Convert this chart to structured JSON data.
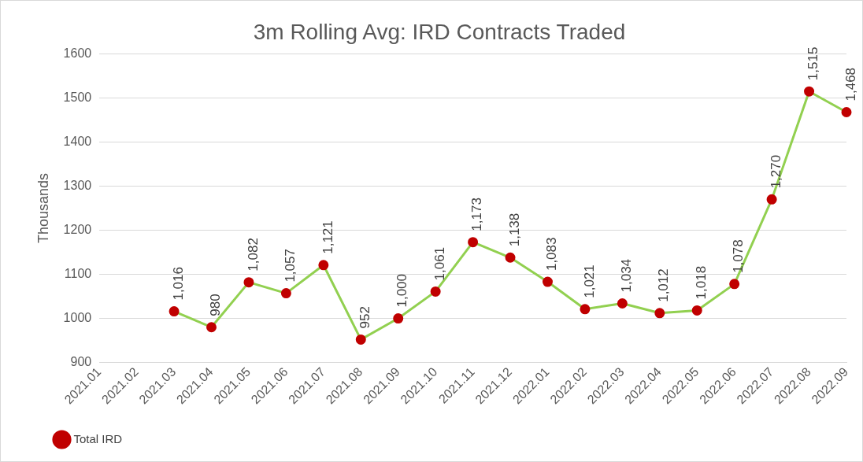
{
  "chart_data": {
    "type": "line",
    "title": "3m Rolling Avg: IRD Contracts Traded",
    "ylabel": "Thousands",
    "categories": [
      "2021.01",
      "2021.02",
      "2021.03",
      "2021.04",
      "2021.05",
      "2021.06",
      "2021.07",
      "2021.08",
      "2021.09",
      "2021.10",
      "2021.11",
      "2021.12",
      "2022.01",
      "2022.02",
      "2022.03",
      "2022.04",
      "2022.05",
      "2022.06",
      "2022.07",
      "2022.08",
      "2022.09"
    ],
    "series": [
      {
        "name": "Total IRD",
        "color": "#92d050",
        "values": [
          null,
          null,
          1016,
          980,
          1082,
          1057,
          1121,
          952,
          1000,
          1061,
          1173,
          1138,
          1083,
          1021,
          1034,
          1012,
          1018,
          1078,
          1270,
          1515,
          1468
        ],
        "value_labels": [
          null,
          null,
          "1,016",
          "980",
          "1,082",
          "1,057",
          "1,121",
          "952",
          "1,000",
          "1,061",
          "1,173",
          "1,138",
          "1,083",
          "1,021",
          "1,034",
          "1,012",
          "1,018",
          "1,078",
          "1,270",
          "1,515",
          "1,468"
        ]
      }
    ],
    "ylim": [
      900,
      1600
    ],
    "yticks": [
      900,
      1000,
      1100,
      1200,
      1300,
      1400,
      1500,
      1600
    ],
    "grid": "y",
    "legend": "bottom left",
    "marker": "circle",
    "line_style": "solid"
  }
}
